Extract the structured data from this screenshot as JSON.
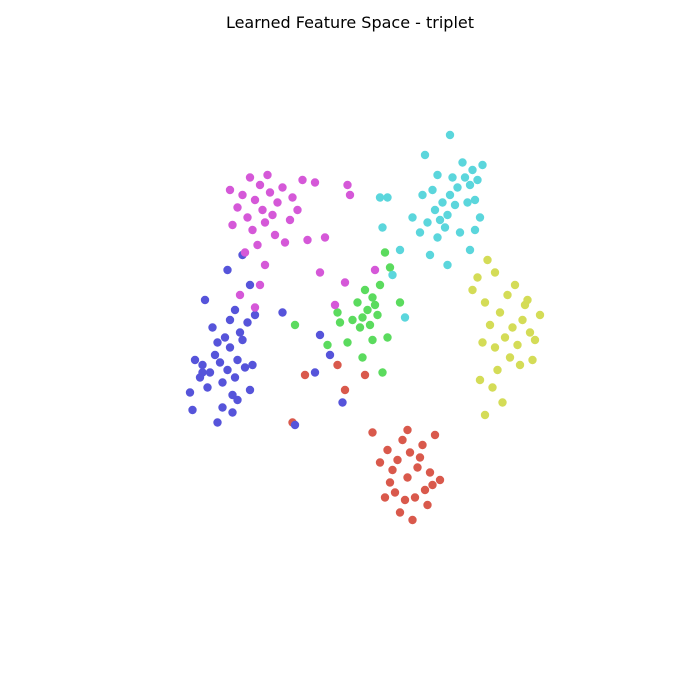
{
  "chart_data": {
    "type": "scatter",
    "title": "Learned Feature Space - triplet",
    "xlabel": "",
    "ylabel": "",
    "axes_visible": false,
    "grid": false,
    "legend": "none",
    "xlim": [
      -10,
      10
    ],
    "ylim": [
      -10,
      10
    ],
    "series": [
      {
        "color": "#d9594c",
        "points": [
          [
            1.9,
            -5.1
          ],
          [
            2.3,
            -4.7
          ],
          [
            1.5,
            -4.4
          ],
          [
            2.6,
            -5.6
          ],
          [
            1.8,
            -6.0
          ],
          [
            2.0,
            -4.1
          ],
          [
            1.2,
            -5.3
          ],
          [
            2.8,
            -4.9
          ],
          [
            1.6,
            -6.5
          ],
          [
            2.2,
            -5.9
          ],
          [
            2.9,
            -5.4
          ],
          [
            1.3,
            -4.8
          ],
          [
            2.5,
            -3.8
          ],
          [
            1.7,
            -3.6
          ],
          [
            2.1,
            -6.8
          ],
          [
            1.0,
            -5.9
          ],
          [
            3.2,
            -5.2
          ],
          [
            2.4,
            -4.3
          ],
          [
            1.4,
            -5.7
          ],
          [
            1.9,
            -3.2
          ],
          [
            2.7,
            -6.2
          ],
          [
            0.8,
            -4.5
          ],
          [
            3.0,
            -3.4
          ],
          [
            -0.6,
            -1.6
          ],
          [
            -0.9,
            -0.6
          ],
          [
            0.2,
            -1.0
          ],
          [
            -2.7,
            -2.9
          ],
          [
            -2.2,
            -1.0
          ],
          [
            0.5,
            -3.3
          ],
          [
            1.1,
            -4.0
          ]
        ]
      },
      {
        "color": "#d4dc57",
        "points": [
          [
            6.1,
            0.9
          ],
          [
            5.8,
            0.5
          ],
          [
            6.5,
            1.2
          ],
          [
            6.3,
            0.2
          ],
          [
            5.6,
            1.5
          ],
          [
            6.8,
            0.7
          ],
          [
            6.0,
            -0.3
          ],
          [
            5.4,
            0.1
          ],
          [
            6.6,
            1.8
          ],
          [
            7.0,
            0.4
          ],
          [
            5.9,
            2.2
          ],
          [
            5.2,
            1.0
          ],
          [
            6.4,
            -0.6
          ],
          [
            7.2,
            1.4
          ],
          [
            5.5,
            -0.8
          ],
          [
            5.0,
            1.9
          ],
          [
            6.2,
            2.6
          ],
          [
            5.3,
            -1.5
          ],
          [
            4.9,
            0.3
          ],
          [
            5.7,
            -2.1
          ],
          [
            4.7,
            2.9
          ],
          [
            6.9,
            -0.4
          ],
          [
            5.1,
            3.6
          ],
          [
            4.5,
            2.4
          ],
          [
            5.4,
            3.1
          ],
          [
            4.8,
            -1.2
          ],
          [
            6.7,
            2.0
          ],
          [
            5.0,
            -2.6
          ]
        ]
      },
      {
        "color": "#5bdb5e",
        "points": [
          [
            0.3,
            1.6
          ],
          [
            0.5,
            2.1
          ],
          [
            0.1,
            1.3
          ],
          [
            0.6,
            1.8
          ],
          [
            0.2,
            2.4
          ],
          [
            0.4,
            1.0
          ],
          [
            -0.1,
            1.9
          ],
          [
            0.7,
            1.4
          ],
          [
            0.0,
            0.9
          ],
          [
            0.8,
            2.6
          ],
          [
            -0.3,
            1.2
          ],
          [
            0.5,
            0.4
          ],
          [
            1.2,
            3.3
          ],
          [
            1.0,
            3.9
          ],
          [
            -0.9,
            1.5
          ],
          [
            -0.5,
            0.3
          ],
          [
            1.1,
            0.5
          ],
          [
            0.9,
            -0.9
          ],
          [
            -0.8,
            1.1
          ],
          [
            -2.6,
            1.0
          ],
          [
            0.1,
            -0.3
          ],
          [
            1.6,
            1.9
          ],
          [
            -1.3,
            0.2
          ]
        ]
      },
      {
        "color": "#5654da",
        "points": [
          [
            -5.3,
            -0.8
          ],
          [
            -5.6,
            -0.5
          ],
          [
            -5.0,
            -1.1
          ],
          [
            -5.8,
            -0.2
          ],
          [
            -4.9,
            -0.4
          ],
          [
            -5.5,
            -1.3
          ],
          [
            -6.0,
            -0.9
          ],
          [
            -5.2,
            0.1
          ],
          [
            -4.6,
            -0.7
          ],
          [
            -6.3,
            -0.6
          ],
          [
            -5.4,
            0.5
          ],
          [
            -4.8,
            0.7
          ],
          [
            -6.1,
            -1.5
          ],
          [
            -5.7,
            0.3
          ],
          [
            -4.4,
            -1.6
          ],
          [
            -6.6,
            -0.4
          ],
          [
            -5.1,
            -1.8
          ],
          [
            -4.7,
            0.4
          ],
          [
            -6.4,
            -1.1
          ],
          [
            -5.9,
            0.9
          ],
          [
            -4.5,
            1.1
          ],
          [
            -6.8,
            -1.7
          ],
          [
            -5.5,
            -2.3
          ],
          [
            -4.9,
            -2.0
          ],
          [
            -5.2,
            1.2
          ],
          [
            -6.7,
            -2.4
          ],
          [
            -6.3,
            -0.9
          ],
          [
            -4.3,
            -0.6
          ],
          [
            -5.0,
            1.6
          ],
          [
            -5.7,
            -2.9
          ],
          [
            -6.2,
            2.0
          ],
          [
            -4.4,
            2.6
          ],
          [
            -5.3,
            3.2
          ],
          [
            -4.7,
            3.8
          ],
          [
            -2.6,
            -3.0
          ],
          [
            -1.6,
            0.6
          ],
          [
            -1.2,
            -0.2
          ],
          [
            -1.8,
            -0.9
          ],
          [
            -4.2,
            1.4
          ],
          [
            -0.7,
            -2.1
          ],
          [
            -3.1,
            1.5
          ],
          [
            -5.1,
            -2.5
          ]
        ]
      },
      {
        "color": "#d558d8",
        "points": [
          [
            -4.2,
            6.0
          ],
          [
            -3.9,
            5.6
          ],
          [
            -4.5,
            5.3
          ],
          [
            -3.6,
            6.3
          ],
          [
            -4.0,
            6.6
          ],
          [
            -3.3,
            5.9
          ],
          [
            -4.7,
            6.2
          ],
          [
            -3.8,
            5.1
          ],
          [
            -4.3,
            4.8
          ],
          [
            -3.5,
            5.4
          ],
          [
            -4.9,
            5.7
          ],
          [
            -3.1,
            6.5
          ],
          [
            -4.4,
            6.9
          ],
          [
            -3.4,
            4.6
          ],
          [
            -5.1,
            5.0
          ],
          [
            -2.8,
            5.2
          ],
          [
            -4.1,
            4.2
          ],
          [
            -2.7,
            6.1
          ],
          [
            -3.7,
            7.0
          ],
          [
            -5.2,
            6.4
          ],
          [
            -2.5,
            5.6
          ],
          [
            -3.0,
            4.3
          ],
          [
            -4.6,
            3.9
          ],
          [
            -2.3,
            6.8
          ],
          [
            -3.8,
            3.4
          ],
          [
            -4.0,
            2.6
          ],
          [
            -1.8,
            6.7
          ],
          [
            -2.1,
            4.4
          ],
          [
            -1.4,
            4.5
          ],
          [
            -1.6,
            3.1
          ],
          [
            -4.8,
            2.2
          ],
          [
            -4.2,
            1.7
          ],
          [
            -0.5,
            6.6
          ],
          [
            -0.4,
            6.2
          ],
          [
            0.6,
            3.2
          ],
          [
            -0.6,
            2.7
          ],
          [
            -1.0,
            1.8
          ]
        ]
      },
      {
        "color": "#5bd6dc",
        "points": [
          [
            3.9,
            6.5
          ],
          [
            4.2,
            6.9
          ],
          [
            3.6,
            6.2
          ],
          [
            4.4,
            6.6
          ],
          [
            3.8,
            5.8
          ],
          [
            4.5,
            7.2
          ],
          [
            3.3,
            5.9
          ],
          [
            4.1,
            7.5
          ],
          [
            3.5,
            5.4
          ],
          [
            4.7,
            6.8
          ],
          [
            3.0,
            5.6
          ],
          [
            4.3,
            5.9
          ],
          [
            3.7,
            6.9
          ],
          [
            4.9,
            7.4
          ],
          [
            3.2,
            5.2
          ],
          [
            2.9,
            6.4
          ],
          [
            4.6,
            6.0
          ],
          [
            3.4,
            4.9
          ],
          [
            2.7,
            5.1
          ],
          [
            4.0,
            4.7
          ],
          [
            3.1,
            4.5
          ],
          [
            2.5,
            6.2
          ],
          [
            4.8,
            5.3
          ],
          [
            2.4,
            4.7
          ],
          [
            4.4,
            4.0
          ],
          [
            3.1,
            7.0
          ],
          [
            2.6,
            7.8
          ],
          [
            3.6,
            8.6
          ],
          [
            1.1,
            6.1
          ],
          [
            2.1,
            5.3
          ],
          [
            0.9,
            4.9
          ],
          [
            1.6,
            4.0
          ],
          [
            1.3,
            3.0
          ],
          [
            1.8,
            1.3
          ],
          [
            2.8,
            3.8
          ],
          [
            3.5,
            3.4
          ],
          [
            4.6,
            4.8
          ],
          [
            0.8,
            6.1
          ]
        ]
      }
    ]
  }
}
